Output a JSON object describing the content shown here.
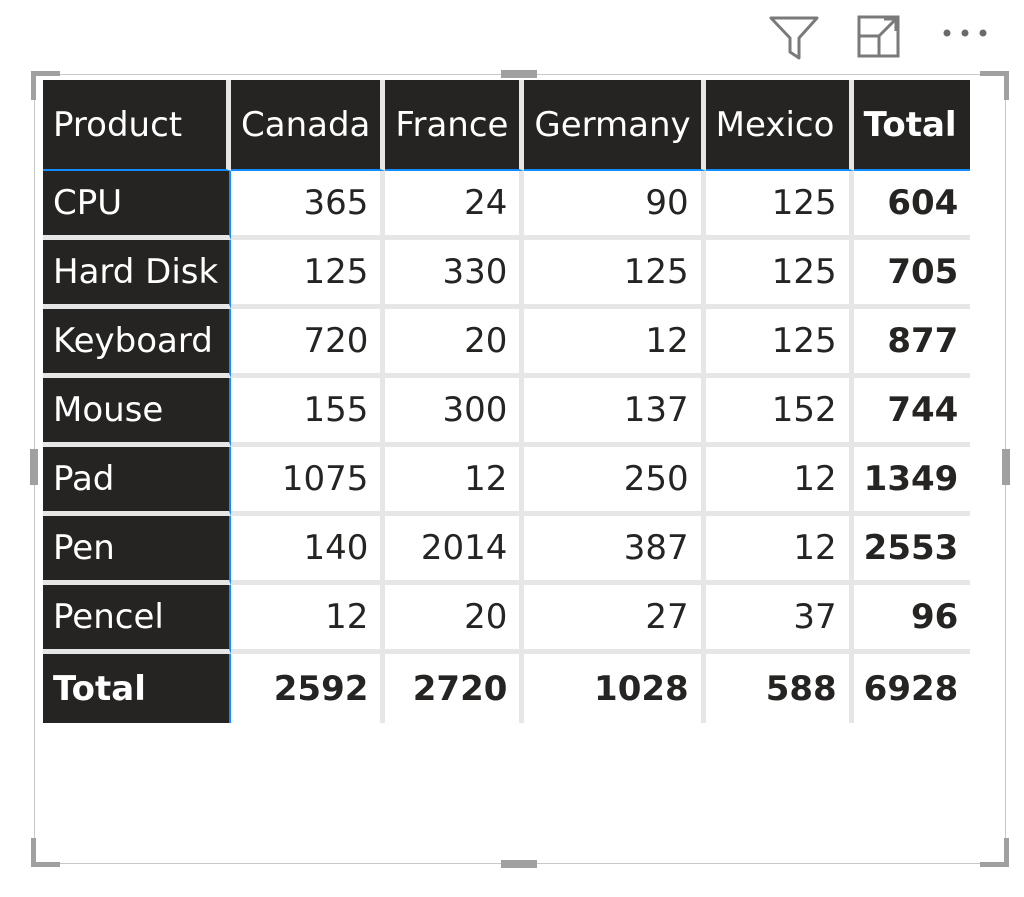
{
  "toolbar": {
    "filter_icon": "filter-icon",
    "focus_icon": "focus-mode-icon",
    "more_icon": "more-options-icon",
    "more_glyph": "···"
  },
  "matrix": {
    "headers": [
      "Product",
      "Canada",
      "France",
      "Germany",
      "Mexico",
      "Total"
    ],
    "rows": [
      {
        "label": "CPU",
        "values": [
          "365",
          "24",
          "90",
          "125"
        ],
        "total": "604"
      },
      {
        "label": "Hard Disk",
        "values": [
          "125",
          "330",
          "125",
          "125"
        ],
        "total": "705"
      },
      {
        "label": "Keyboard",
        "values": [
          "720",
          "20",
          "12",
          "125"
        ],
        "total": "877"
      },
      {
        "label": "Mouse",
        "values": [
          "155",
          "300",
          "137",
          "152"
        ],
        "total": "744"
      },
      {
        "label": "Pad",
        "values": [
          "1075",
          "12",
          "250",
          "12"
        ],
        "total": "1349"
      },
      {
        "label": "Pen",
        "values": [
          "140",
          "2014",
          "387",
          "12"
        ],
        "total": "2553"
      },
      {
        "label": "Pencel",
        "values": [
          "12",
          "20",
          "27",
          "37"
        ],
        "total": "96"
      }
    ],
    "total_row": {
      "label": "Total",
      "values": [
        "2592",
        "2720",
        "1028",
        "588"
      ],
      "total": "6928"
    }
  },
  "colors": {
    "header_bg": "#252423",
    "header_text": "#ffffff",
    "grid": "#e6e6e6",
    "accent": "#118dff",
    "cell_text": "#252423"
  }
}
